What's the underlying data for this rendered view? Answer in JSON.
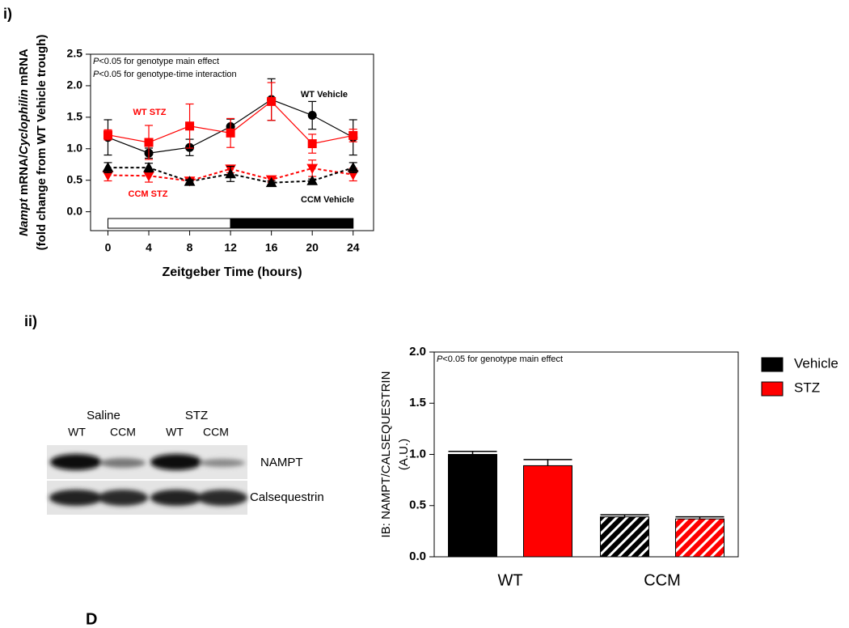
{
  "chart_data": [
    {
      "type": "line",
      "panel": "i)",
      "annotations": [
        [
          {
            "text": "P",
            "italic": true
          },
          {
            "text": "<0.05 for genotype main effect"
          }
        ],
        [
          {
            "text": "P",
            "italic": true
          },
          {
            "text": "<0.05 for genotype-time interaction"
          }
        ]
      ],
      "y_label": [
        [
          {
            "text": "Nampt",
            "italic": true
          },
          {
            "text": " mRNA/"
          },
          {
            "text": "Cyclophilin",
            "italic": true
          },
          {
            "text": " mRNA"
          }
        ],
        [
          {
            "text": "(fold change from WT Vehicle trough)"
          }
        ]
      ],
      "x_label": "Zeitgeber Time (hours)",
      "x": [
        0,
        4,
        8,
        12,
        16,
        20,
        24
      ],
      "xlim": [
        -1.7,
        26
      ],
      "xticks": [
        0,
        4,
        8,
        12,
        16,
        20,
        24
      ],
      "ylim": [
        -0.3,
        2.5
      ],
      "yticks": [
        {
          "value": 0,
          "label": "0.0"
        },
        {
          "value": 0.5,
          "label": "0.5"
        },
        {
          "value": 1,
          "label": "1.0"
        },
        {
          "value": 1.5,
          "label": "1.5"
        },
        {
          "value": 2,
          "label": "2.0"
        },
        {
          "value": 2.5,
          "label": "2.5"
        }
      ],
      "light_dark": [
        {
          "x0": 0,
          "x1": 12,
          "fill": "#ffffff"
        },
        {
          "x0": 12,
          "x1": 24,
          "fill": "#000000"
        }
      ],
      "series": [
        {
          "name": "WT Vehicle",
          "color": "#000000",
          "marker": "circle",
          "dash": false,
          "values": [
            1.18,
            0.93,
            1.02,
            1.35,
            1.78,
            1.53,
            1.18
          ],
          "errors": [
            0.28,
            0.08,
            0.13,
            0.12,
            0.33,
            0.22,
            0.28
          ]
        },
        {
          "name": "WT STZ",
          "color": "#ff0000",
          "marker": "square",
          "dash": false,
          "values": [
            1.22,
            1.1,
            1.36,
            1.25,
            1.75,
            1.08,
            1.21
          ],
          "errors": [
            0.08,
            0.27,
            0.35,
            0.23,
            0.3,
            0.15,
            0.1
          ]
        },
        {
          "name": "CCM STZ",
          "color": "#ff0000",
          "marker": "triangle-down",
          "dash": true,
          "values": [
            0.58,
            0.57,
            0.49,
            0.68,
            0.51,
            0.69,
            0.59
          ],
          "errors": [
            0.09,
            0.1,
            0.03,
            0.06,
            0.04,
            0.13,
            0.1
          ]
        },
        {
          "name": "CCM Vehicle",
          "color": "#000000",
          "marker": "triangle-up",
          "dash": true,
          "values": [
            0.7,
            0.7,
            0.48,
            0.6,
            0.46,
            0.49,
            0.7
          ],
          "errors": [
            0.08,
            0.07,
            0.03,
            0.12,
            0.03,
            0.03,
            0.08
          ]
        }
      ]
    },
    {
      "type": "bar",
      "panel": "ii)",
      "annotations": [
        [
          {
            "text": "P",
            "italic": true
          },
          {
            "text": "<0.05 for genotype main effect"
          }
        ]
      ],
      "y_label": [
        [
          {
            "text": "IB: NAMPT/CALSEQUESTRIN"
          }
        ],
        [
          {
            "text": "(A.U.)"
          }
        ]
      ],
      "categories": [
        "WT",
        "CCM"
      ],
      "hatch": [
        false,
        true
      ],
      "ylim": [
        0,
        2
      ],
      "yticks": [
        {
          "value": 0,
          "label": "0.0"
        },
        {
          "value": 0.5,
          "label": "0.5"
        },
        {
          "value": 1,
          "label": "1.0"
        },
        {
          "value": 1.5,
          "label": "1.5"
        },
        {
          "value": 2,
          "label": "2.0"
        }
      ],
      "series": [
        {
          "name": "Vehicle",
          "color": "#000000",
          "values": [
            1.0,
            0.39
          ],
          "errors": [
            0.03,
            0.02
          ]
        },
        {
          "name": "STZ",
          "color": "#ff0000",
          "values": [
            0.89,
            0.37
          ],
          "errors": [
            0.06,
            0.02
          ]
        }
      ]
    }
  ],
  "blot": {
    "groups": [
      "Saline",
      "STZ"
    ],
    "lanes": [
      "WT",
      "CCM",
      "WT",
      "CCM"
    ],
    "rows": [
      "NAMPT",
      "Calsequestrin"
    ]
  },
  "footer_label": "D"
}
